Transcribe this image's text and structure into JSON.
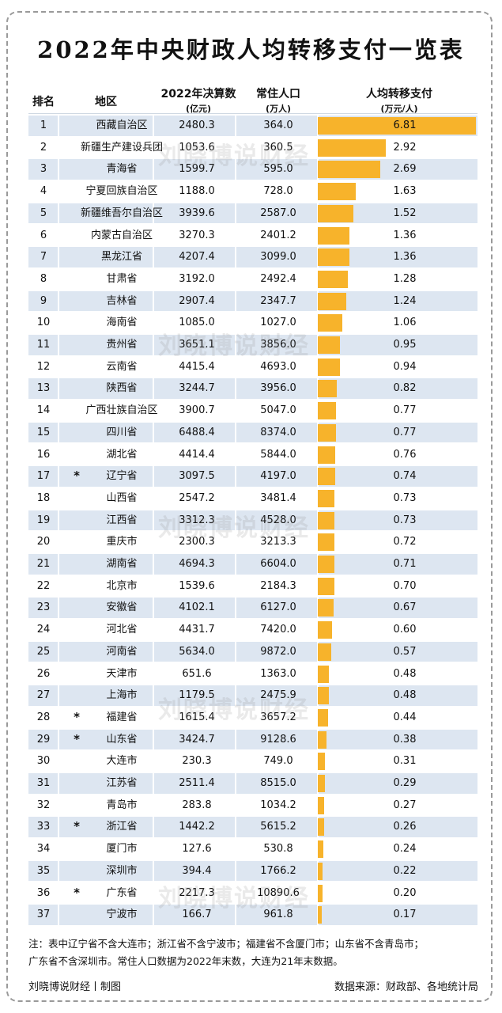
{
  "title": "2022年中央财政人均转移支付一览表",
  "headers": {
    "rank": "排名",
    "region": "地区",
    "budget": "2022年决算数",
    "budget_unit": "(亿元)",
    "population": "常住人口",
    "population_unit": "(万人)",
    "per_capita": "人均转移支付",
    "per_capita_unit": "(万元/人)"
  },
  "star_symbol": "*",
  "colors": {
    "bar": "#f7b32b",
    "band": "#dde6f1"
  },
  "watermark": "刘晓博说财经",
  "chart_data": {
    "type": "table",
    "title": "2022年中央财政人均转移支付一览表",
    "xlim": [
      0,
      6.81
    ],
    "columns": [
      "排名",
      "地区",
      "2022年决算数(亿元)",
      "常住人口(万人)",
      "人均转移支付(万元/人)"
    ],
    "rows": [
      {
        "rank": "1",
        "region": "西藏自治区",
        "budget": "2480.3",
        "population": "364.0",
        "per_capita": 6.81,
        "per_capita_label": "6.81",
        "star": false
      },
      {
        "rank": "2",
        "region": "新疆生产建设兵团",
        "budget": "1053.6",
        "population": "360.5",
        "per_capita": 2.92,
        "per_capita_label": "2.92",
        "star": false
      },
      {
        "rank": "3",
        "region": "青海省",
        "budget": "1599.7",
        "population": "595.0",
        "per_capita": 2.69,
        "per_capita_label": "2.69",
        "star": false
      },
      {
        "rank": "4",
        "region": "宁夏回族自治区",
        "budget": "1188.0",
        "population": "728.0",
        "per_capita": 1.63,
        "per_capita_label": "1.63",
        "star": false
      },
      {
        "rank": "5",
        "region": "新疆维吾尔自治区",
        "budget": "3939.6",
        "population": "2587.0",
        "per_capita": 1.52,
        "per_capita_label": "1.52",
        "star": false
      },
      {
        "rank": "6",
        "region": "内蒙古自治区",
        "budget": "3270.3",
        "population": "2401.2",
        "per_capita": 1.36,
        "per_capita_label": "1.36",
        "star": false
      },
      {
        "rank": "7",
        "region": "黑龙江省",
        "budget": "4207.4",
        "population": "3099.0",
        "per_capita": 1.36,
        "per_capita_label": "1.36",
        "star": false
      },
      {
        "rank": "8",
        "region": "甘肃省",
        "budget": "3192.0",
        "population": "2492.4",
        "per_capita": 1.28,
        "per_capita_label": "1.28",
        "star": false
      },
      {
        "rank": "9",
        "region": "吉林省",
        "budget": "2907.4",
        "population": "2347.7",
        "per_capita": 1.24,
        "per_capita_label": "1.24",
        "star": false
      },
      {
        "rank": "10",
        "region": "海南省",
        "budget": "1085.0",
        "population": "1027.0",
        "per_capita": 1.06,
        "per_capita_label": "1.06",
        "star": false
      },
      {
        "rank": "11",
        "region": "贵州省",
        "budget": "3651.1",
        "population": "3856.0",
        "per_capita": 0.95,
        "per_capita_label": "0.95",
        "star": false
      },
      {
        "rank": "12",
        "region": "云南省",
        "budget": "4415.4",
        "population": "4693.0",
        "per_capita": 0.94,
        "per_capita_label": "0.94",
        "star": false
      },
      {
        "rank": "13",
        "region": "陕西省",
        "budget": "3244.7",
        "population": "3956.0",
        "per_capita": 0.82,
        "per_capita_label": "0.82",
        "star": false
      },
      {
        "rank": "14",
        "region": "广西壮族自治区",
        "budget": "3900.7",
        "population": "5047.0",
        "per_capita": 0.77,
        "per_capita_label": "0.77",
        "star": false
      },
      {
        "rank": "15",
        "region": "四川省",
        "budget": "6488.4",
        "population": "8374.0",
        "per_capita": 0.77,
        "per_capita_label": "0.77",
        "star": false
      },
      {
        "rank": "16",
        "region": "湖北省",
        "budget": "4414.4",
        "population": "5844.0",
        "per_capita": 0.76,
        "per_capita_label": "0.76",
        "star": false
      },
      {
        "rank": "17",
        "region": "辽宁省",
        "budget": "3097.5",
        "population": "4197.0",
        "per_capita": 0.74,
        "per_capita_label": "0.74",
        "star": true
      },
      {
        "rank": "18",
        "region": "山西省",
        "budget": "2547.2",
        "population": "3481.4",
        "per_capita": 0.73,
        "per_capita_label": "0.73",
        "star": false
      },
      {
        "rank": "19",
        "region": "江西省",
        "budget": "3312.3",
        "population": "4528.0",
        "per_capita": 0.73,
        "per_capita_label": "0.73",
        "star": false
      },
      {
        "rank": "20",
        "region": "重庆市",
        "budget": "2300.3",
        "population": "3213.3",
        "per_capita": 0.72,
        "per_capita_label": "0.72",
        "star": false
      },
      {
        "rank": "21",
        "region": "湖南省",
        "budget": "4694.3",
        "population": "6604.0",
        "per_capita": 0.71,
        "per_capita_label": "0.71",
        "star": false
      },
      {
        "rank": "22",
        "region": "北京市",
        "budget": "1539.6",
        "population": "2184.3",
        "per_capita": 0.7,
        "per_capita_label": "0.70",
        "star": false
      },
      {
        "rank": "23",
        "region": "安徽省",
        "budget": "4102.1",
        "population": "6127.0",
        "per_capita": 0.67,
        "per_capita_label": "0.67",
        "star": false
      },
      {
        "rank": "24",
        "region": "河北省",
        "budget": "4431.7",
        "population": "7420.0",
        "per_capita": 0.6,
        "per_capita_label": "0.60",
        "star": false
      },
      {
        "rank": "25",
        "region": "河南省",
        "budget": "5634.0",
        "population": "9872.0",
        "per_capita": 0.57,
        "per_capita_label": "0.57",
        "star": false
      },
      {
        "rank": "26",
        "region": "天津市",
        "budget": "651.6",
        "population": "1363.0",
        "per_capita": 0.48,
        "per_capita_label": "0.48",
        "star": false
      },
      {
        "rank": "27",
        "region": "上海市",
        "budget": "1179.5",
        "population": "2475.9",
        "per_capita": 0.48,
        "per_capita_label": "0.48",
        "star": false
      },
      {
        "rank": "28",
        "region": "福建省",
        "budget": "1615.4",
        "population": "3657.2",
        "per_capita": 0.44,
        "per_capita_label": "0.44",
        "star": true
      },
      {
        "rank": "29",
        "region": "山东省",
        "budget": "3424.7",
        "population": "9128.6",
        "per_capita": 0.38,
        "per_capita_label": "0.38",
        "star": true
      },
      {
        "rank": "30",
        "region": "大连市",
        "budget": "230.3",
        "population": "749.0",
        "per_capita": 0.31,
        "per_capita_label": "0.31",
        "star": false
      },
      {
        "rank": "31",
        "region": "江苏省",
        "budget": "2511.4",
        "population": "8515.0",
        "per_capita": 0.29,
        "per_capita_label": "0.29",
        "star": false
      },
      {
        "rank": "32",
        "region": "青岛市",
        "budget": "283.8",
        "population": "1034.2",
        "per_capita": 0.27,
        "per_capita_label": "0.27",
        "star": false
      },
      {
        "rank": "33",
        "region": "浙江省",
        "budget": "1442.2",
        "population": "5615.2",
        "per_capita": 0.26,
        "per_capita_label": "0.26",
        "star": true
      },
      {
        "rank": "34",
        "region": "厦门市",
        "budget": "127.6",
        "population": "530.8",
        "per_capita": 0.24,
        "per_capita_label": "0.24",
        "star": false
      },
      {
        "rank": "35",
        "region": "深圳市",
        "budget": "394.4",
        "population": "1766.2",
        "per_capita": 0.22,
        "per_capita_label": "0.22",
        "star": false
      },
      {
        "rank": "36",
        "region": "广东省",
        "budget": "2217.3",
        "population": "10890.6",
        "per_capita": 0.2,
        "per_capita_label": "0.20",
        "star": true
      },
      {
        "rank": "37",
        "region": "宁波市",
        "budget": "166.7",
        "population": "961.8",
        "per_capita": 0.17,
        "per_capita_label": "0.17",
        "star": false
      }
    ]
  },
  "note": {
    "line1": "注：表中辽宁省不含大连市；浙江省不含宁波市；福建省不含厦门市；山东省不含青岛市；",
    "line2": "广东省不含深圳市。常住人口数据为2022年末数，大连为21年末数据。"
  },
  "footer": {
    "credit": "刘晓博说财经丨制图",
    "source": "数据来源：财政部、各地统计局"
  }
}
